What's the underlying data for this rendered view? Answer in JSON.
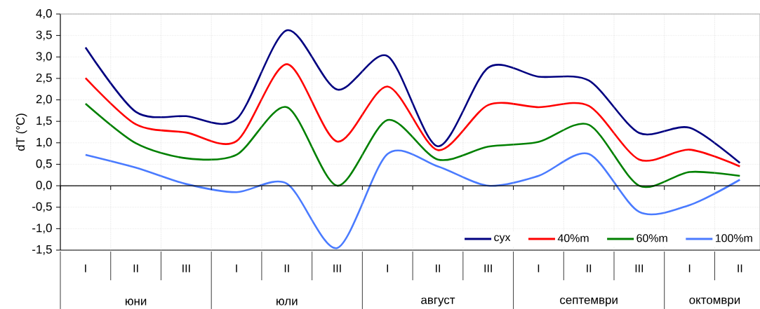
{
  "chart_data": {
    "type": "line",
    "ylabel": "dT (°C)",
    "categories": [
      "I",
      "II",
      "III",
      "I",
      "II",
      "III",
      "I",
      "II",
      "III",
      "I",
      "II",
      "III",
      "I",
      "II"
    ],
    "annotations": [
      "юни",
      "юли",
      "август",
      "септември",
      "октомври"
    ],
    "series": [
      {
        "name": "сух",
        "color": "#000080",
        "values": [
          3.22,
          1.72,
          1.62,
          1.55,
          3.62,
          2.24,
          3.02,
          0.92,
          2.75,
          2.54,
          2.45,
          1.23,
          1.35,
          0.53
        ]
      },
      {
        "name": "40%m",
        "color": "#ff0000",
        "values": [
          2.51,
          1.43,
          1.24,
          1.04,
          2.83,
          1.03,
          2.31,
          0.83,
          1.88,
          1.83,
          1.86,
          0.61,
          0.84,
          0.45
        ]
      },
      {
        "name": "60%m",
        "color": "#008000",
        "values": [
          1.91,
          0.99,
          0.64,
          0.72,
          1.83,
          0.0,
          1.53,
          0.61,
          0.91,
          1.02,
          1.42,
          0.0,
          0.32,
          0.23
        ]
      },
      {
        "name": "100%m",
        "color": "#4a7bff",
        "values": [
          0.72,
          0.42,
          0.04,
          -0.15,
          0.05,
          -1.45,
          0.74,
          0.45,
          0.0,
          0.23,
          0.74,
          -0.61,
          -0.45,
          0.14
        ]
      }
    ],
    "ylim": [
      -1.5,
      4.0
    ],
    "yticks": [
      {
        "value": -1.5,
        "label": "-1,5"
      },
      {
        "value": -1.0,
        "label": "-1,0"
      },
      {
        "value": -0.5,
        "label": "-0,5"
      },
      {
        "value": 0.0,
        "label": "0,0"
      },
      {
        "value": 0.5,
        "label": "0,5"
      },
      {
        "value": 1.0,
        "label": "1,0"
      },
      {
        "value": 1.5,
        "label": "1,5"
      },
      {
        "value": 2.0,
        "label": "2,0"
      },
      {
        "value": 2.5,
        "label": "2,5"
      },
      {
        "value": 3.0,
        "label": "3,0"
      },
      {
        "value": 3.5,
        "label": "3,5"
      },
      {
        "value": 4.0,
        "label": "4,0"
      }
    ],
    "grid": true,
    "legend": "bottom right",
    "marker": "none",
    "line_style": "solid"
  }
}
